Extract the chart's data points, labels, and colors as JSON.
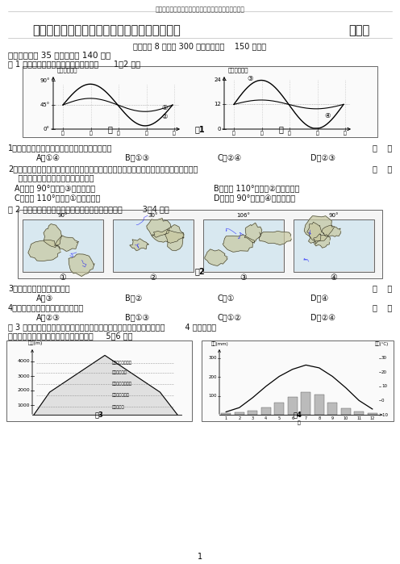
{
  "title_top": "陕西省宝鸡市高三文科综合教课质量检测试卷二人教版",
  "title_main": "陕西省宝鸡市高三文科综合教课质量检测试卷二",
  "title_right": "人教版",
  "subtitle": "本试题共 8 页，共 300 分，考试时间    150 分钟。",
  "section1": "一、（本卷共 35 小题，合计 140 分）",
  "fig1_caption": "图 1 中的节气为北半球，读图判断并回答      1－2 题：",
  "q1": "1．甲乙两图中，分别反应纬度较高的两条曲线是",
  "q1_A": "A．①④",
  "q1_B": "B．①③",
  "q1_C": "C．②④",
  "q1_D": "D．②③",
  "q2_line1": "2．在以下地比的宽阔平川上若建同一高度的南北两栋楼，要使北楼每一层整年太阳光芒不",
  "q2_line2": "    被遮挡，两楼间距最长的地址可能是",
  "q2_A": "A．东经 90°，曲线③反应的纬度",
  "q2_B": "B．东经 110°，曲线②反应的纬度",
  "q2_C": "C．东经 110°，曲线①反应的纬度",
  "q2_D": "D．东经 90°，曲线④反应的纬度",
  "fig2_caption": "图 2 为世界上四条有名河流入海口表示图，读后回答        3－4 题：",
  "q3": "3．只流经一个国家的河流是",
  "q3_A": "A．③",
  "q3_B": "B．②",
  "q3_C": "C．①",
  "q3_D": "D．④",
  "q4": "4．河流四周水稻栽种面积最广的是",
  "q4_A": "A．②③",
  "q4_B": "B．①③",
  "q4_C": "C．①②",
  "q4_D": "D．②④",
  "fig34_cap1": "图 3 是我国某主要地形区内祖一批型代表性山地自然带的垂直散布图，图        4 是该地形区",
  "fig34_cap2": "中年内各月均气平和降水量图，读后回答     5－6 题：",
  "page_num": "1",
  "bg_color": "#ffffff"
}
